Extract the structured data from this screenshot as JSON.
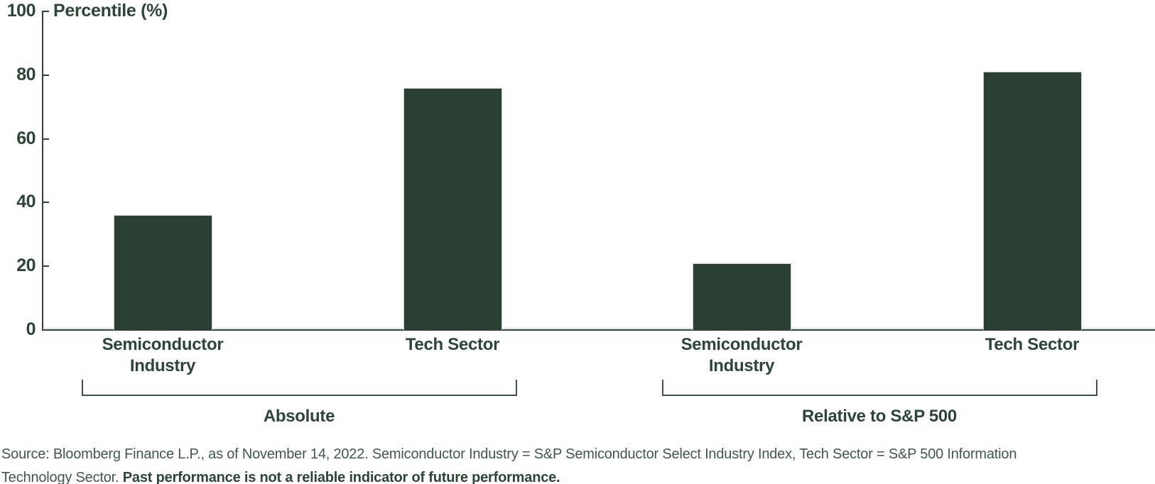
{
  "chart_data": {
    "type": "bar",
    "title": "",
    "ylabel": "Percentile (%)",
    "xlabel": "",
    "ylim": [
      0,
      100
    ],
    "yticks": [
      0,
      20,
      40,
      60,
      80,
      100
    ],
    "grid": false,
    "legend": "none",
    "bar_color": "#2a3f31",
    "groups": [
      {
        "label": "Absolute",
        "categories": [
          "Semiconductor Industry",
          "Tech Sector"
        ],
        "values": [
          36,
          76
        ]
      },
      {
        "label": "Relative to S&P 500",
        "categories": [
          "Semiconductor Industry",
          "Tech Sector"
        ],
        "values": [
          21,
          81
        ]
      }
    ]
  },
  "source": {
    "line1": "Source: Bloomberg Finance L.P., as of November 14, 2022. Semiconductor Industry = S&P Semiconductor Select Industry Index, Tech Sector = S&P 500 Information",
    "line2_regular": "Technology Sector. ",
    "line2_bold": "Past performance is not a reliable indicator of future performance."
  },
  "colors": {
    "bar": "#2a3f31",
    "axis": "#2b4536",
    "text": "#2b4536",
    "bracket": "#3b5347",
    "source_text": "#40584b"
  }
}
